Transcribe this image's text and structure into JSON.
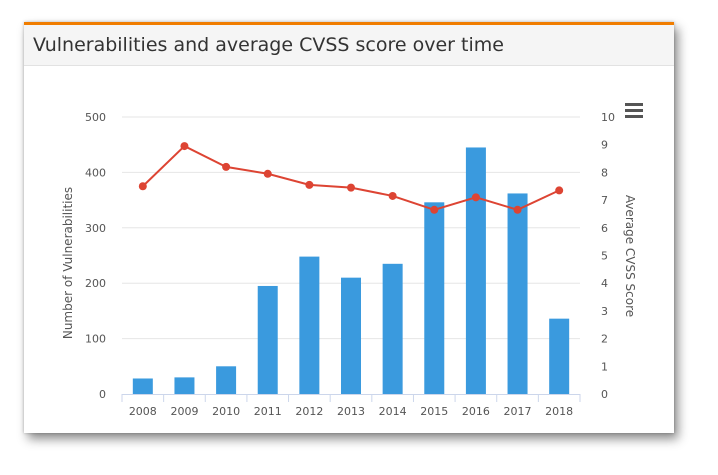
{
  "card": {
    "title": "Vulnerabilities and average CVSS score over time"
  },
  "icons": {
    "menu": "hamburger-menu-icon"
  },
  "colors": {
    "accent": "#f07d00",
    "bar": "#3a9ade",
    "line": "#dd4433",
    "grid": "#e6e6e6",
    "axis_text": "#555555"
  },
  "chart_data": {
    "type": "bar",
    "categories": [
      "2008",
      "2009",
      "2010",
      "2011",
      "2012",
      "2013",
      "2014",
      "2015",
      "2016",
      "2017",
      "2018"
    ],
    "series": [
      {
        "name": "Number of Vulnerabilities",
        "type": "bar",
        "axis": "left",
        "values": [
          28,
          30,
          50,
          195,
          248,
          210,
          235,
          346,
          445,
          362,
          136
        ]
      },
      {
        "name": "Average CVSS Score",
        "type": "line",
        "axis": "right",
        "values": [
          7.5,
          8.95,
          8.2,
          7.95,
          7.55,
          7.45,
          7.15,
          6.65,
          7.1,
          6.65,
          7.35
        ]
      }
    ],
    "title": "Vulnerabilities and average CVSS score over time",
    "xlabel": "",
    "ylabel": "Number of Vulnerabilities",
    "y2label": "Average CVSS Score",
    "ylim": [
      0,
      500
    ],
    "y2lim": [
      0,
      10
    ],
    "yticks": [
      "0",
      "100",
      "200",
      "300",
      "400",
      "500"
    ],
    "y2ticks": [
      "0",
      "1",
      "2",
      "3",
      "4",
      "5",
      "6",
      "7",
      "8",
      "9",
      "10"
    ],
    "grid": true
  }
}
